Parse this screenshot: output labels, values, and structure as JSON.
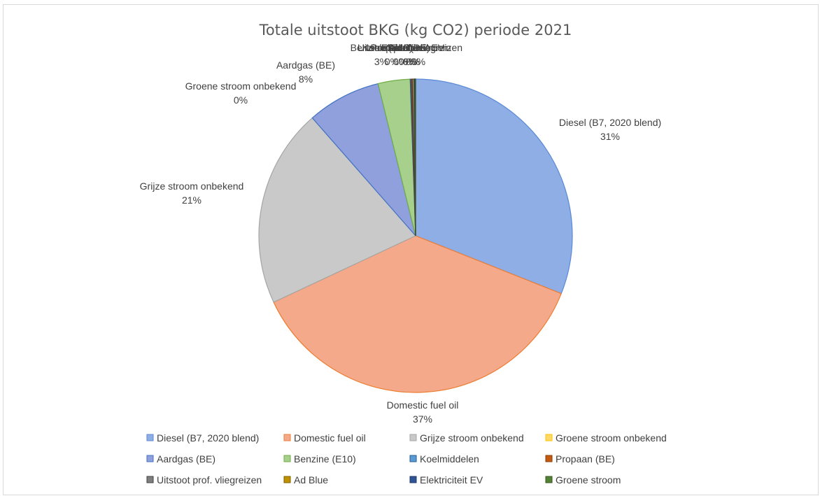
{
  "chart_data": {
    "type": "pie",
    "title": "Totale uitstoot BKG (kg CO2) periode 2021",
    "legend_position": "bottom",
    "slices": [
      {
        "label": "Diesel (B7, 2020 blend)",
        "pct_label": "31%",
        "value": 31.0,
        "color": "#8eaee5",
        "edge": "#5b8ad6"
      },
      {
        "label": "Domestic fuel oil",
        "pct_label": "37%",
        "value": 37.0,
        "color": "#f4a98a",
        "edge": "#ed7d31"
      },
      {
        "label": "Grijze stroom onbekend",
        "pct_label": "21%",
        "value": 20.5,
        "color": "#c9c9c9",
        "edge": "#a5a5a5"
      },
      {
        "label": "Groene stroom onbekend",
        "pct_label": "0%",
        "value": 0.0,
        "color": "#ffd966",
        "edge": "#ffc000"
      },
      {
        "label": "Aardgas (BE)",
        "pct_label": "8%",
        "value": 7.6,
        "color": "#8fa0dc",
        "edge": "#4472c4"
      },
      {
        "label": "Benzine (E10)",
        "pct_label": "3%",
        "value": 3.3,
        "color": "#a8d08d",
        "edge": "#70ad47"
      },
      {
        "label": "Koelmiddelen",
        "pct_label": "0%",
        "value": 0.1,
        "color": "#5b9bd5",
        "edge": "#255e91"
      },
      {
        "label": "Propaan (BE)",
        "pct_label": "0%",
        "value": 0.1,
        "color": "#c55a11",
        "edge": "#843c0c"
      },
      {
        "label": "Uitstoot prof. vliegreizen",
        "pct_label": "0%",
        "value": 0.2,
        "color": "#7f7f7f",
        "edge": "#404040"
      },
      {
        "label": "Ad Blue",
        "pct_label": "0%",
        "value": 0.05,
        "color": "#bf9000",
        "edge": "#7f6000"
      },
      {
        "label": "Elektriciteit EV",
        "pct_label": "0%",
        "value": 0.05,
        "color": "#2f5597",
        "edge": "#1f3864"
      },
      {
        "label": "Groene stroom",
        "pct_label": "0%",
        "value": 0.05,
        "color": "#548235",
        "edge": "#375623"
      }
    ]
  }
}
